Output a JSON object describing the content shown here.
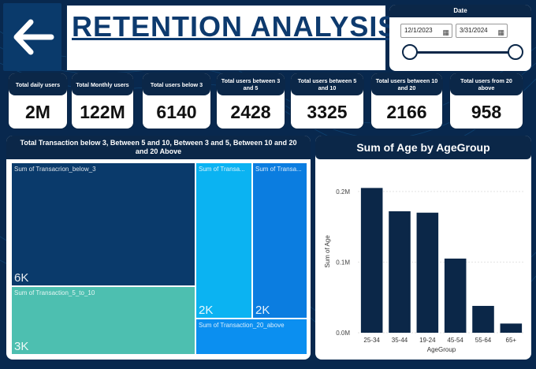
{
  "header": {
    "title": "RETENTION ANALYSIS",
    "date_filter": {
      "label": "Date",
      "start": "12/1/2023",
      "end": "3/31/2024"
    }
  },
  "kpis": [
    {
      "label": "Total daily users",
      "value": "2M"
    },
    {
      "label": "Total Monthly users",
      "value": "122M"
    },
    {
      "label": "Total users below 3",
      "value": "6140"
    },
    {
      "label": "Total users between 3 and 5",
      "value": "2428"
    },
    {
      "label": "Total users between 5 and 10",
      "value": "3325"
    },
    {
      "label": "Total users between 10 and 20",
      "value": "2166"
    },
    {
      "label": "Total users from 20 above",
      "value": "958"
    }
  ],
  "treemap": {
    "title": "Total Transaction below 3, Between 5 and 10, Between 3 and 5, Between 10 and 20 and 20 Above",
    "cells": [
      {
        "label": "Sum of Transacrion_below_3",
        "value": "6K",
        "color": "#0a3a6b"
      },
      {
        "label": "Sum of Transaction_5_to_10",
        "value": "3K",
        "color": "#4dbfb0"
      },
      {
        "label": "Sum of Transa...",
        "value": "2K",
        "color": "#0bb3f2"
      },
      {
        "label": "Sum of Transa...",
        "value": "2K",
        "color": "#0b7de0"
      },
      {
        "label": "Sum of Transaction_20_above",
        "value": "",
        "color": "#0b8ff0"
      }
    ]
  },
  "chart_data": {
    "type": "bar",
    "title": "Sum of Age by AgeGroup",
    "xlabel": "AgeGroup",
    "ylabel": "Sum of Age",
    "categories": [
      "25-34",
      "35-44",
      "19-24",
      "45-54",
      "55-64",
      "65+"
    ],
    "values": [
      205000,
      172000,
      170000,
      105000,
      38000,
      13000
    ],
    "ylim": [
      0,
      230000
    ],
    "yticks": [
      {
        "v": 0,
        "label": "0.0M"
      },
      {
        "v": 100000,
        "label": "0.1M"
      },
      {
        "v": 200000,
        "label": "0.2M"
      }
    ],
    "bar_color": "#0b2748",
    "grid": true
  }
}
